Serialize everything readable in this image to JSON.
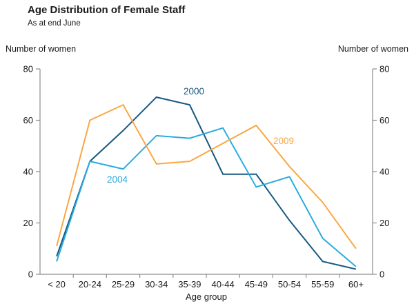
{
  "header": {
    "title": "Age Distribution of Female Staff",
    "subtitle": "As at end June",
    "y_axis_header_left": "Number of women",
    "y_axis_header_right": "Number of women"
  },
  "chart_data": {
    "type": "line",
    "title": "Age Distribution of Female Staff",
    "subtitle": "As at end June",
    "xlabel": "Age group",
    "ylabel_left": "Number of women",
    "ylabel_right": "Number of women",
    "categories": [
      "< 20",
      "20-24",
      "25-29",
      "30-34",
      "35-39",
      "40-44",
      "45-49",
      "50-54",
      "55-59",
      "60+"
    ],
    "series": [
      {
        "name": "2000",
        "color": "#17587f",
        "values": [
          7,
          44,
          56,
          69,
          66,
          39,
          39,
          21,
          5,
          2
        ]
      },
      {
        "name": "2004",
        "color": "#29abe2",
        "values": [
          5,
          44,
          41,
          54,
          53,
          57,
          34,
          38,
          14,
          3
        ]
      },
      {
        "name": "2009",
        "color": "#faa743",
        "values": [
          11,
          60,
          66,
          43,
          44,
          51,
          58,
          42,
          28,
          10
        ]
      }
    ],
    "ylim": [
      0,
      80
    ],
    "yticks": [
      0,
      20,
      40,
      60,
      80
    ],
    "grid": false,
    "legend_position": "inline-labels",
    "axis_color": "#8c8c8c",
    "text_color": "#1a1a1a"
  }
}
